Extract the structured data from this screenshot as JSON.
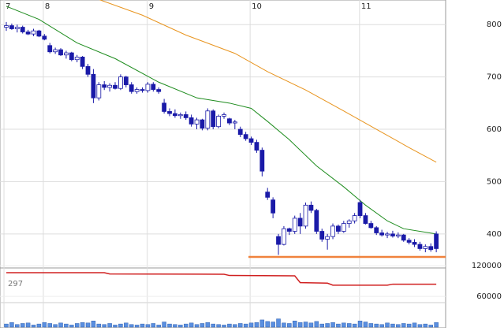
{
  "chart_data": {
    "type": "candlestick",
    "xlim": [
      -1.16,
      80.72
    ],
    "xticks": [
      {
        "value": -0.43,
        "label": "7"
      },
      {
        "value": 6.8,
        "label": "8"
      },
      {
        "value": 25.9,
        "label": "9"
      },
      {
        "value": 44.8,
        "label": "10"
      },
      {
        "value": 64.9,
        "label": "11"
      }
    ],
    "ylim": [
      335,
      847
    ],
    "yticks": [
      400,
      500,
      600,
      700,
      800
    ],
    "up_color": "#ffffff",
    "down_color": "#1a1aa8",
    "candles": [
      [
        795,
        805,
        788,
        798
      ],
      [
        798,
        802,
        790,
        792
      ],
      [
        792,
        800,
        785,
        795
      ],
      [
        795,
        798,
        783,
        786
      ],
      [
        786,
        790,
        780,
        782
      ],
      [
        782,
        792,
        778,
        788
      ],
      [
        788,
        790,
        776,
        778
      ],
      [
        778,
        782,
        770,
        772
      ],
      [
        760,
        765,
        745,
        748
      ],
      [
        748,
        756,
        744,
        752
      ],
      [
        752,
        755,
        740,
        742
      ],
      [
        742,
        750,
        735,
        746
      ],
      [
        746,
        748,
        730,
        733
      ],
      [
        733,
        742,
        728,
        738
      ],
      [
        738,
        740,
        715,
        720
      ],
      [
        720,
        725,
        700,
        705
      ],
      [
        705,
        715,
        650,
        660
      ],
      [
        660,
        690,
        655,
        685
      ],
      [
        685,
        692,
        675,
        680
      ],
      [
        680,
        688,
        672,
        684
      ],
      [
        684,
        690,
        676,
        678
      ],
      [
        678,
        705,
        675,
        700
      ],
      [
        700,
        702,
        680,
        685
      ],
      [
        685,
        690,
        668,
        672
      ],
      [
        672,
        680,
        668,
        676
      ],
      [
        676,
        680,
        670,
        674
      ],
      [
        674,
        690,
        670,
        686
      ],
      [
        686,
        690,
        672,
        676
      ],
      [
        676,
        680,
        668,
        672
      ],
      [
        650,
        658,
        630,
        634
      ],
      [
        634,
        640,
        625,
        630
      ],
      [
        630,
        638,
        622,
        626
      ],
      [
        626,
        632,
        620,
        628
      ],
      [
        628,
        634,
        618,
        622
      ],
      [
        622,
        628,
        605,
        610
      ],
      [
        610,
        622,
        600,
        618
      ],
      [
        618,
        620,
        598,
        602
      ],
      [
        602,
        640,
        598,
        635
      ],
      [
        635,
        638,
        600,
        605
      ],
      [
        605,
        628,
        602,
        625
      ],
      [
        625,
        632,
        620,
        628
      ],
      [
        620,
        622,
        608,
        612
      ],
      [
        612,
        618,
        600,
        614
      ],
      [
        600,
        605,
        585,
        590
      ],
      [
        590,
        595,
        578,
        582
      ],
      [
        582,
        586,
        570,
        575
      ],
      [
        575,
        580,
        555,
        560
      ],
      [
        560,
        565,
        510,
        520
      ],
      [
        480,
        488,
        465,
        470
      ],
      [
        465,
        470,
        430,
        440
      ],
      [
        395,
        400,
        360,
        380
      ],
      [
        380,
        415,
        378,
        410
      ],
      [
        410,
        412,
        398,
        405
      ],
      [
        405,
        435,
        400,
        430
      ],
      [
        430,
        440,
        400,
        415
      ],
      [
        415,
        460,
        410,
        455
      ],
      [
        455,
        462,
        440,
        445
      ],
      [
        445,
        448,
        400,
        405
      ],
      [
        405,
        410,
        385,
        390
      ],
      [
        390,
        400,
        370,
        395
      ],
      [
        395,
        420,
        390,
        415
      ],
      [
        415,
        418,
        400,
        405
      ],
      [
        405,
        425,
        402,
        420
      ],
      [
        420,
        428,
        412,
        425
      ],
      [
        425,
        440,
        420,
        435
      ],
      [
        460,
        465,
        430,
        435
      ],
      [
        435,
        440,
        418,
        420
      ],
      [
        420,
        425,
        410,
        412
      ],
      [
        412,
        415,
        398,
        402
      ],
      [
        402,
        408,
        395,
        398
      ],
      [
        398,
        404,
        392,
        400
      ],
      [
        400,
        406,
        393,
        396
      ],
      [
        396,
        403,
        392,
        398
      ],
      [
        398,
        400,
        385,
        388
      ],
      [
        388,
        392,
        380,
        384
      ],
      [
        384,
        390,
        375,
        380
      ],
      [
        380,
        385,
        368,
        372
      ],
      [
        372,
        380,
        365,
        376
      ],
      [
        376,
        382,
        366,
        370
      ],
      [
        400,
        405,
        365,
        372
      ]
    ],
    "moving_averages": [
      {
        "color": "#1e8c1e",
        "x": [
          0,
          6,
          13,
          20,
          28,
          35,
          41,
          45,
          48,
          52,
          57,
          62,
          66,
          70,
          73,
          79
        ],
        "values": [
          835,
          810,
          765,
          735,
          690,
          660,
          650,
          640,
          615,
          580,
          530,
          490,
          455,
          425,
          410,
          400
        ]
      },
      {
        "color": "#e8941e",
        "x": [
          17,
          25,
          33,
          42,
          48,
          55,
          62,
          68,
          74,
          79
        ],
        "values": [
          848,
          818,
          780,
          745,
          710,
          675,
          635,
          600,
          565,
          537
        ]
      }
    ],
    "support": {
      "value": 356,
      "color": "#f0823c"
    },
    "lower": {
      "ylim": [
        0,
        125000
      ],
      "yticks": [
        120000,
        60000
      ],
      "label": "297",
      "line": {
        "color": "#d02020",
        "x": [
          0,
          18,
          19,
          40,
          41,
          53,
          54,
          59,
          60,
          70,
          71,
          79
        ],
        "values": [
          106500,
          106500,
          104000,
          103400,
          101000,
          100300,
          87000,
          86000,
          82000,
          82000,
          84000,
          84000
        ]
      },
      "volume_color": "#5a8fe0",
      "volume": [
        6000,
        9000,
        5000,
        7000,
        8000,
        4000,
        6000,
        9000,
        7000,
        5000,
        8000,
        6000,
        4000,
        7000,
        9000,
        8000,
        12000,
        6000,
        5000,
        7000,
        4000,
        6000,
        8000,
        5000,
        4000,
        6000,
        5000,
        7000,
        4000,
        10000,
        6000,
        5000,
        4000,
        6000,
        8000,
        5000,
        7000,
        9000,
        6000,
        5000,
        4000,
        6000,
        5000,
        7000,
        6000,
        8000,
        9000,
        14000,
        11000,
        10000,
        16000,
        8000,
        7000,
        12000,
        9000,
        10000,
        8000,
        11000,
        6000,
        7000,
        9000,
        6000,
        8000,
        7000,
        6000,
        12000,
        10000,
        7000,
        6000,
        5000,
        8000,
        6000,
        5000,
        7000,
        6000,
        8000,
        5000,
        6000,
        4000,
        9000
      ]
    }
  }
}
